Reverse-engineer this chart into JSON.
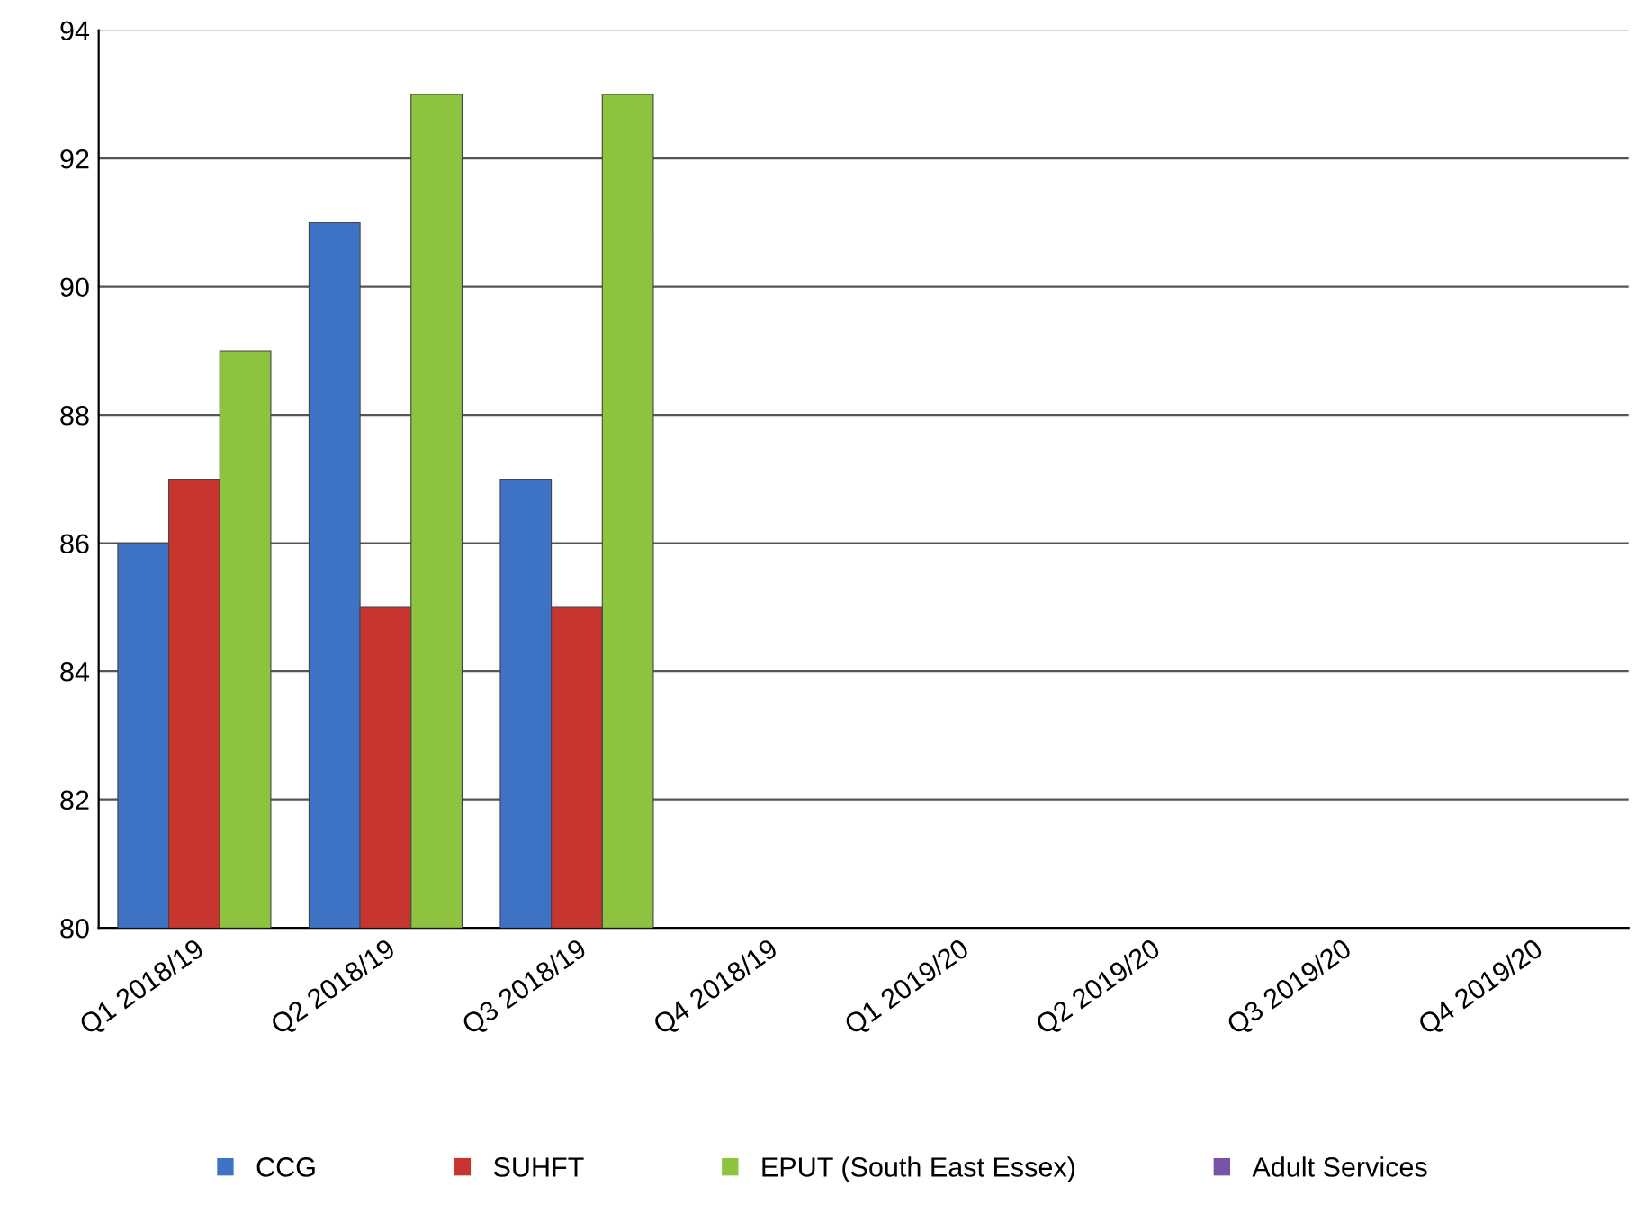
{
  "chart_data": {
    "type": "bar",
    "categories": [
      "Q1 2018/19",
      "Q2 2018/19",
      "Q3 2018/19",
      "Q4 2018/19",
      "Q1 2019/20",
      "Q2 2019/20",
      "Q3 2019/20",
      "Q4 2019/20"
    ],
    "series": [
      {
        "name": "CCG",
        "color": "#3d72c4",
        "values": [
          86,
          91,
          87,
          null,
          null,
          null,
          null,
          null
        ]
      },
      {
        "name": "SUHFT",
        "color": "#c8352f",
        "values": [
          87,
          85,
          85,
          null,
          null,
          null,
          null,
          null
        ]
      },
      {
        "name": "EPUT (South East Essex)",
        "color": "#8dc33f",
        "values": [
          89,
          93,
          93,
          null,
          null,
          null,
          null,
          null
        ]
      },
      {
        "name": "Adult Services",
        "color": "#7a52a6",
        "values": [
          null,
          null,
          null,
          null,
          null,
          null,
          null,
          null
        ]
      }
    ],
    "ylim": [
      80,
      94
    ],
    "yticks": [
      80,
      82,
      84,
      86,
      88,
      90,
      92,
      94
    ],
    "grid": "y",
    "legend": "bottom"
  }
}
